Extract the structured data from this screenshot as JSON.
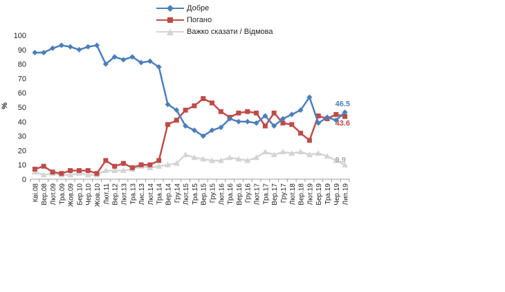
{
  "chart_data": {
    "type": "line",
    "ylabel": "%",
    "ylim": [
      0,
      100
    ],
    "yticks": [
      0,
      10,
      20,
      30,
      40,
      50,
      60,
      70,
      80,
      90,
      100
    ],
    "legend_position": "top",
    "categories": [
      "Кві.08",
      "Вер.08",
      "Лют.09",
      "Тра.09",
      "Жов.09",
      "Бер.10",
      "Чер.10",
      "Жов.10",
      "Лют.11",
      "Вер.12",
      "Лют.13",
      "Тра.13",
      "Лис.13",
      "Лют.14",
      "Тра.14",
      "Вер.14",
      "Гру.14",
      "Лют.15",
      "Тра.15",
      "Вер.15",
      "Гру.15",
      "Лют.16",
      "Тра.16",
      "Вер.16",
      "Гру.16",
      "Лют.17",
      "Тра.17",
      "Вер.17",
      "Гру.17",
      "Лют.18",
      "Вер.18",
      "Лют.19",
      "Бер.19",
      "Тра.19",
      "Чер.19",
      "Лип.19"
    ],
    "series": [
      {
        "name": "Добре",
        "color": "#4a7ebb",
        "marker": "diamond",
        "values": [
          88,
          88,
          91,
          93,
          92,
          90,
          92,
          93,
          80,
          85,
          83,
          85,
          81,
          82,
          78,
          52,
          48,
          37,
          34,
          30,
          34,
          36,
          42,
          40,
          40,
          39,
          44,
          37,
          42,
          45,
          48,
          57,
          39,
          43,
          41,
          46.5
        ],
        "end_label": "46.5"
      },
      {
        "name": "Погано",
        "color": "#be4b48",
        "marker": "square",
        "values": [
          7,
          9,
          5,
          4,
          6,
          6,
          6,
          4,
          13,
          9,
          11,
          8,
          10,
          10,
          13,
          38,
          41,
          48,
          51,
          56,
          53,
          47,
          43,
          46,
          47,
          46,
          37,
          46,
          39,
          38,
          32,
          27,
          44,
          42,
          45,
          43.6
        ],
        "end_label": "43.6"
      },
      {
        "name": "Важко сказати / Відмова",
        "color": "#d4d4d4",
        "marker": "triangle",
        "values": [
          5,
          3,
          4,
          3,
          3,
          4,
          3,
          3,
          6,
          6,
          6,
          7,
          9,
          8,
          9,
          10,
          11,
          17,
          15,
          14,
          13,
          13,
          15,
          14,
          13,
          15,
          19,
          17,
          19,
          18,
          19,
          17,
          18,
          16,
          13,
          9.9
        ],
        "end_label": "9.9"
      }
    ]
  }
}
